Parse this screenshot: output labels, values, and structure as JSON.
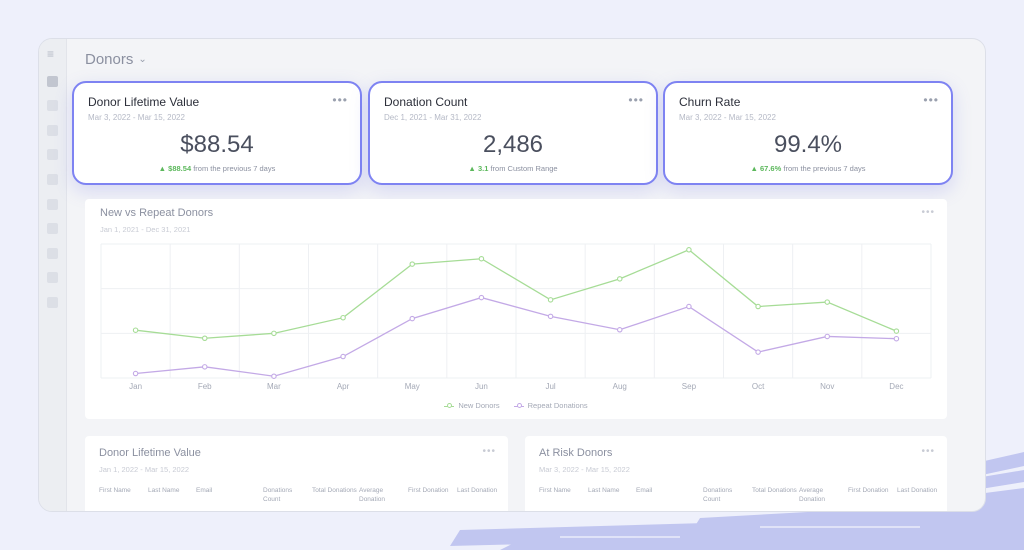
{
  "page": {
    "title": "Donors",
    "title_chevron_icon": "chevron-down-icon"
  },
  "sidebar": {
    "menu_icon": "hamburger-icon",
    "item_count": 10
  },
  "kpis": [
    {
      "title": "Donor Lifetime Value",
      "range": "Mar 3, 2022 - Mar 15, 2022",
      "value": "$88.54",
      "change": "$88.54",
      "change_text": "from the previous 7 days"
    },
    {
      "title": "Donation Count",
      "range": "Dec 1, 2021 - Mar 31, 2022",
      "value": "2,486",
      "change": "3.1",
      "change_text": "from Custom Range"
    },
    {
      "title": "Churn Rate",
      "range": "Mar 3, 2022 - Mar 15, 2022",
      "value": "99.4%",
      "change": "67.6%",
      "change_text": "from the previous 7 days"
    }
  ],
  "colors": {
    "accent": "#7e83f2",
    "up": "#5cb85c",
    "new_donors": "#a6dc96",
    "repeat_donations": "#c3a9e6"
  },
  "chart_panel": {
    "title": "New vs Repeat Donors",
    "range": "Jan 1, 2021 - Dec 31, 2021",
    "dots": "•••"
  },
  "chart_data": {
    "type": "line",
    "title": "New vs Repeat Donors",
    "xlabel": "",
    "ylabel": "",
    "categories": [
      "Jan",
      "Feb",
      "Mar",
      "Apr",
      "May",
      "Jun",
      "Jul",
      "Aug",
      "Sep",
      "Oct",
      "Nov",
      "Dec"
    ],
    "ylim": [
      0,
      3
    ],
    "grid": true,
    "legend": "bottom",
    "series": [
      {
        "name": "New Donors",
        "values": [
          1.07,
          0.89,
          1.0,
          1.35,
          2.55,
          2.67,
          1.75,
          2.22,
          2.87,
          1.6,
          1.7,
          1.05
        ]
      },
      {
        "name": "Repeat Donations",
        "values": [
          0.1,
          0.25,
          0.04,
          0.48,
          1.33,
          1.8,
          1.38,
          1.08,
          1.6,
          0.58,
          0.93,
          0.88
        ]
      }
    ]
  },
  "tables": [
    {
      "title": "Donor Lifetime Value",
      "range": "Jan 1, 2022 - Mar 15, 2022",
      "dots": "•••",
      "columns": [
        "First Name",
        "Last Name",
        "Email",
        "Donations Count",
        "Total Donations",
        "Average Donation",
        "First Donation",
        "Last Donation"
      ]
    },
    {
      "title": "At Risk Donors",
      "range": "Mar 3, 2022 - Mar 15, 2022",
      "dots": "•••",
      "columns": [
        "First Name",
        "Last Name",
        "Email",
        "Donations Count",
        "Total Donations",
        "Average Donation",
        "First Donation",
        "Last Donation"
      ]
    }
  ]
}
